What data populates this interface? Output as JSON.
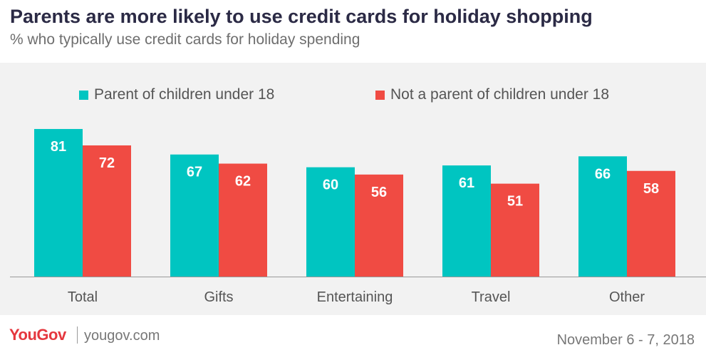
{
  "header": {
    "title": "Parents are more likely to use credit cards for holiday shopping",
    "subtitle": "% who typically use credit cards for holiday spending"
  },
  "chart_data": {
    "type": "bar",
    "categories": [
      "Total",
      "Gifts",
      "Entertaining",
      "Travel",
      "Other"
    ],
    "series": [
      {
        "name": "Parent of children under 18",
        "color": "#00c5c1",
        "values": [
          81,
          67,
          60,
          61,
          66
        ]
      },
      {
        "name": "Not a parent of children under 18",
        "color": "#f04b43",
        "values": [
          72,
          62,
          56,
          51,
          58
        ]
      }
    ],
    "ylim": [
      0,
      100
    ],
    "grid": false,
    "legend_position": "top",
    "data_labels": true
  },
  "footer": {
    "logo": "YouGov",
    "site": "yougov.com",
    "date": "November 6 - 7, 2018"
  }
}
